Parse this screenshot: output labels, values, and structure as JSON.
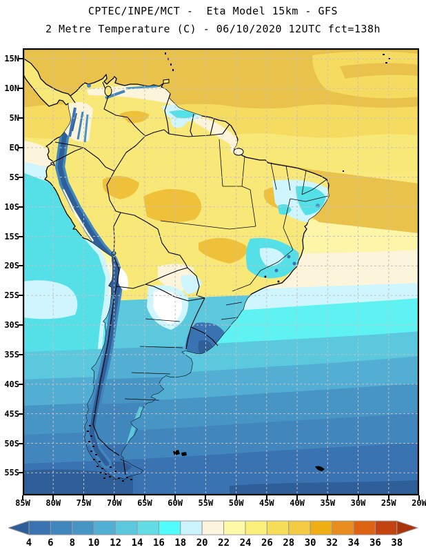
{
  "header": {
    "line1": "CPTEC/INPE/MCT -  Eta Model 15km - GFS",
    "line2": "2 Metre Temperature (C) - 06/10/2020 12UTC fct=138h"
  },
  "axes": {
    "lat_labels": [
      "15N",
      "10N",
      "5N",
      "EQ",
      "5S",
      "10S",
      "15S",
      "20S",
      "25S",
      "30S",
      "35S",
      "40S",
      "45S",
      "50S",
      "55S"
    ],
    "lon_labels": [
      "85W",
      "80W",
      "75W",
      "70W",
      "65W",
      "60W",
      "55W",
      "50W",
      "45W",
      "40W",
      "35W",
      "30W",
      "25W",
      "20W"
    ]
  },
  "colorbar": {
    "tick_labels": [
      "4",
      "6",
      "8",
      "10",
      "12",
      "14",
      "16",
      "18",
      "20",
      "22",
      "24",
      "26",
      "28",
      "30",
      "32",
      "34",
      "36",
      "38"
    ],
    "segment_colors": [
      "#3973B2",
      "#4286BE",
      "#4795C5",
      "#52AFD3",
      "#5CC8DE",
      "#63DCE4",
      "#50FCFC",
      "#CCF4FE",
      "#FCF4DC",
      "#FEF9A7",
      "#FBF07B",
      "#F7DE58",
      "#F2CB43",
      "#EFAF14",
      "#E98C1E",
      "#DD6212",
      "#C2430F"
    ],
    "left_arrow_color": "#2E5F99",
    "right_arrow_color": "#AC340A",
    "border_color": "#999999"
  },
  "style_colors": {
    "grid_color": "#C9BFBF",
    "coast_color": "#000000",
    "land_base": "#F8E878",
    "ocean_warm": "#E9C24B"
  }
}
